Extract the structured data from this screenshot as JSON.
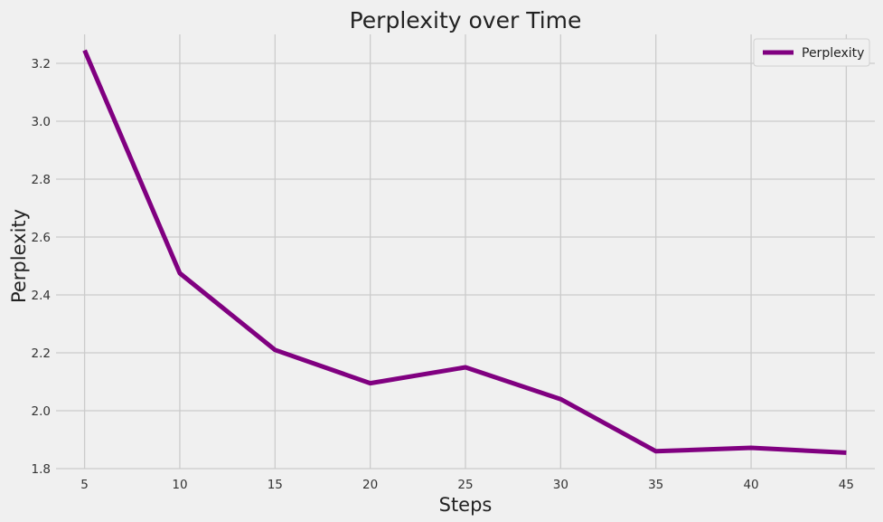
{
  "chart_data": {
    "type": "line",
    "title": "Perplexity over Time",
    "xlabel": "Steps",
    "ylabel": "Perplexity",
    "x": [
      5,
      10,
      15,
      20,
      25,
      30,
      35,
      40,
      45
    ],
    "series": [
      {
        "name": "Perplexity",
        "color": "#800080",
        "values": [
          3.245,
          2.475,
          2.21,
          2.095,
          2.15,
          2.04,
          1.86,
          1.872,
          1.855
        ]
      }
    ],
    "xticks": [
      5,
      10,
      15,
      20,
      25,
      30,
      35,
      40,
      45
    ],
    "yticks": [
      "1.8",
      "2.0",
      "2.2",
      "2.4",
      "2.6",
      "2.8",
      "3.0",
      "3.2"
    ],
    "xlim": [
      3.5,
      46.5
    ],
    "ylim": [
      1.8,
      3.3
    ],
    "grid": true,
    "legend_position": "top-right"
  }
}
